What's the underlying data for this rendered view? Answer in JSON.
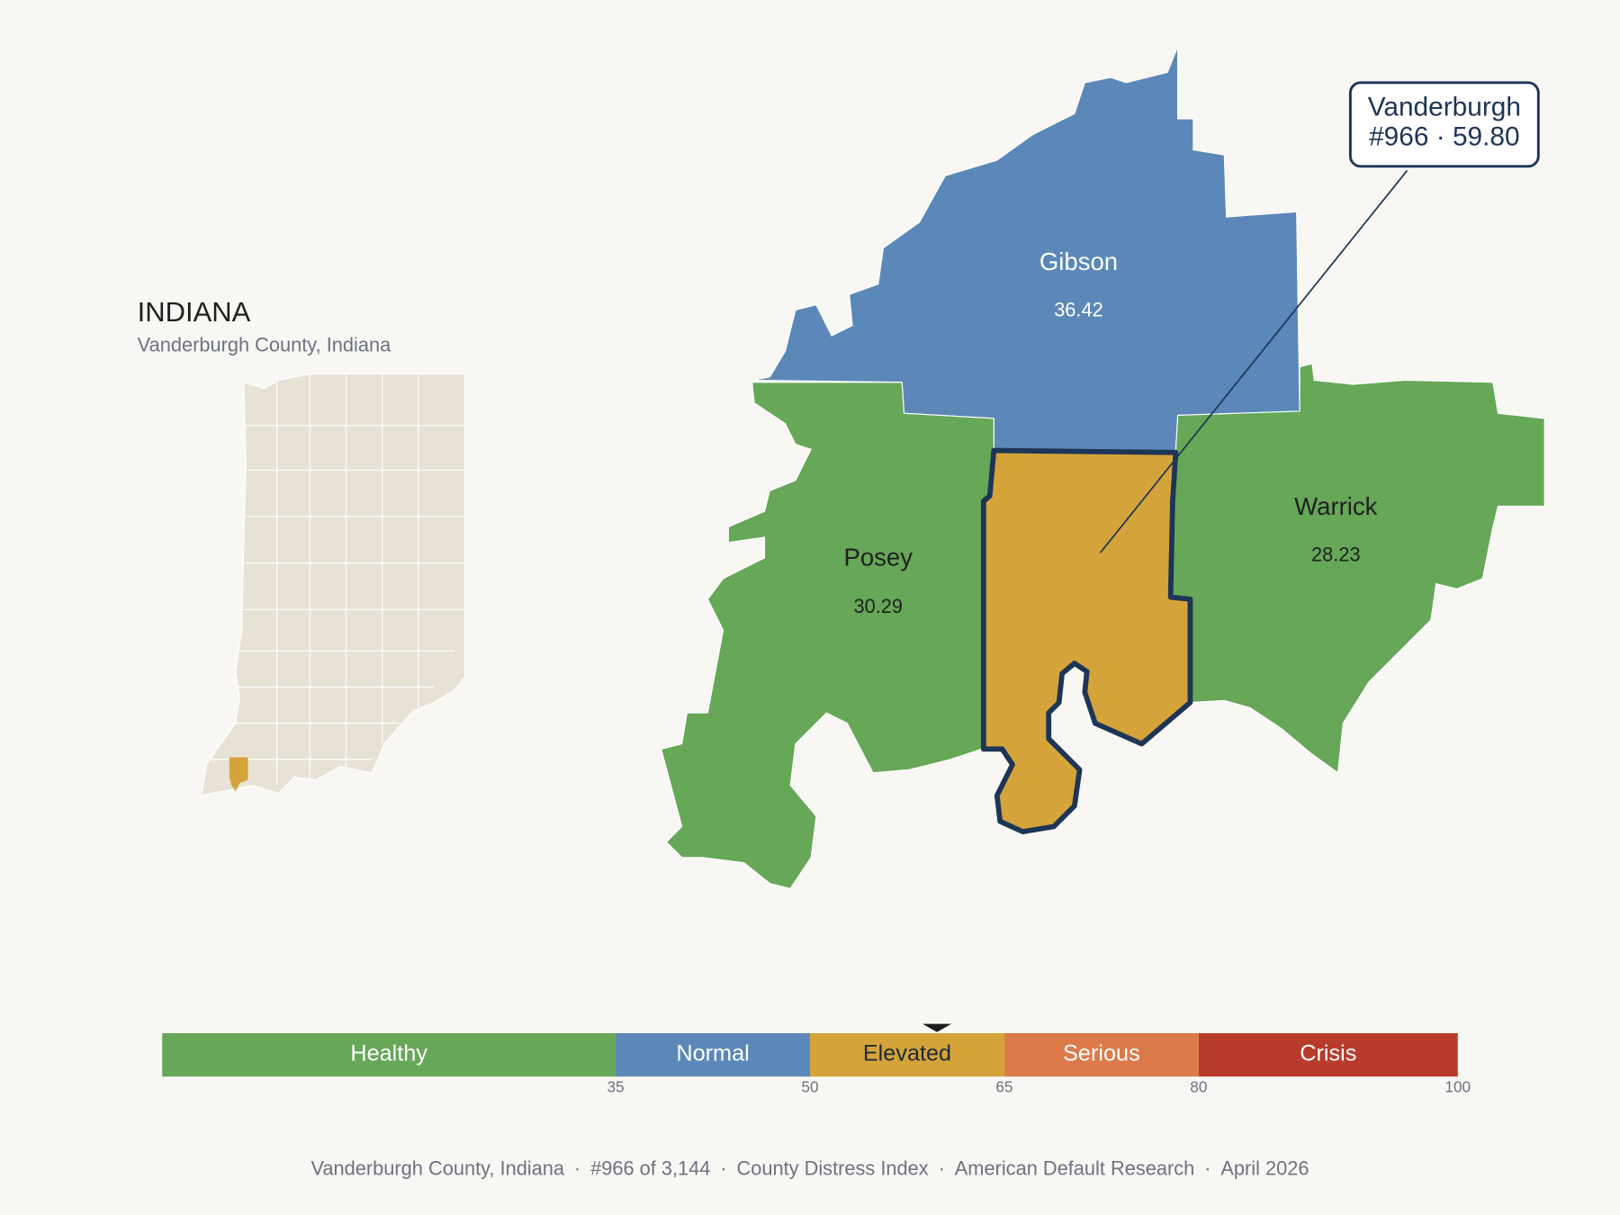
{
  "map": {
    "title": "INDIANA",
    "subtitle": "Vanderburgh County, Indiana",
    "counties": [
      {
        "name": "Gibson",
        "value": 36.42,
        "color": "#5b88b8"
      },
      {
        "name": "Posey",
        "value": 30.29,
        "color": "#66a758"
      },
      {
        "name": "Warrick",
        "value": 28.23,
        "color": "#66a758"
      },
      {
        "name": "Vanderburgh",
        "label": "#966 · 59.80",
        "color": "#d4a43b"
      }
    ]
  },
  "scale": {
    "range": [
      0,
      100
    ],
    "ticks": [
      35,
      50,
      65,
      80,
      100
    ],
    "bands": [
      {
        "label": "Healthy",
        "color": "#66a758",
        "text_color": "#ffffff"
      },
      {
        "label": "Normal",
        "color": "#5b88b8",
        "text_color": "#ffffff"
      },
      {
        "label": "Elevated",
        "color": "#d4a43b",
        "text_color": "#1f2a36"
      },
      {
        "label": "Serious",
        "color": "#dc7a4a",
        "text_color": "#ffffff"
      },
      {
        "label": "Crisis",
        "color": "#b83b2c",
        "text_color": "#ffffff"
      }
    ],
    "marker": 59.8
  },
  "footer": {
    "parts": [
      "Vanderburgh County, Indiana",
      "#966 of 3,144",
      "County Distress Index",
      "American Default Research",
      "April 2026"
    ],
    "separator": "·"
  }
}
